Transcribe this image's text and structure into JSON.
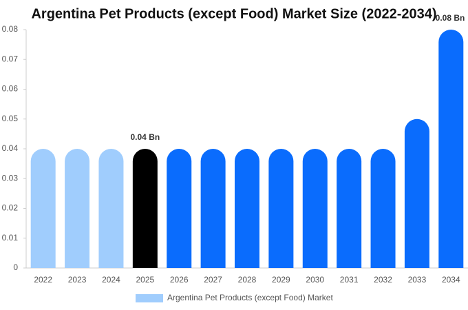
{
  "chart_data": {
    "type": "bar",
    "title": "Argentina Pet Products (except Food) Market Size (2022-2034)",
    "categories": [
      "2022",
      "2023",
      "2024",
      "2025",
      "2026",
      "2027",
      "2028",
      "2029",
      "2030",
      "2031",
      "2032",
      "2033",
      "2034"
    ],
    "series": [
      {
        "name": "Argentina Pet Products (except Food) Market",
        "color": "#a0cdfd",
        "values": [
          0.04,
          0.04,
          0.04,
          0.04,
          0.04,
          0.04,
          0.04,
          0.04,
          0.04,
          0.04,
          0.04,
          0.05,
          0.08
        ],
        "value_labels": [
          null,
          null,
          null,
          "0.04 Bn",
          null,
          null,
          null,
          null,
          null,
          null,
          null,
          null,
          "0.08 Bn"
        ],
        "colors": [
          "#a0cdfd",
          "#a0cdfd",
          "#a0cdfd",
          "#000000",
          "#0a6cfd",
          "#0a6cfd",
          "#0a6cfd",
          "#0a6cfd",
          "#0a6cfd",
          "#0a6cfd",
          "#0a6cfd",
          "#0a6cfd",
          "#0a6cfd"
        ]
      }
    ],
    "ylim": [
      0,
      0.08
    ],
    "yticks": [
      0,
      0.01,
      0.02,
      0.03,
      0.04,
      0.05,
      0.06,
      0.07,
      0.08
    ]
  }
}
